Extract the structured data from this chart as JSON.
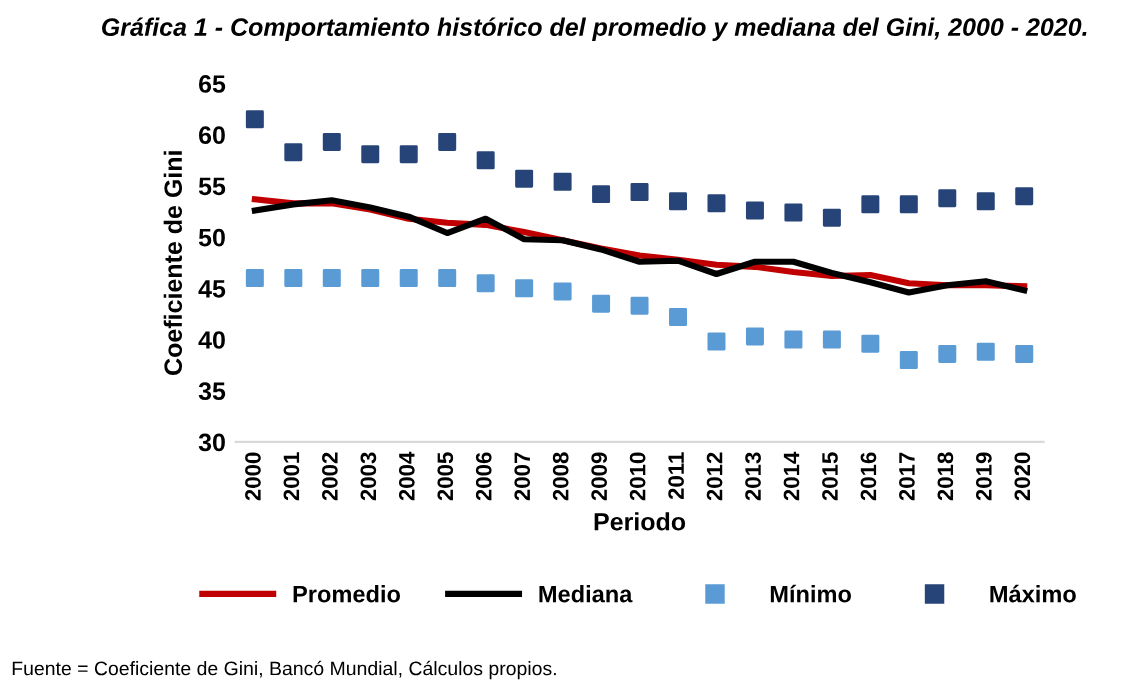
{
  "chart_data": {
    "type": "line",
    "title": "Gráfica 1 - Comportamiento histórico del promedio y mediana del Gini, 2000 - 2020.",
    "xlabel": "Periodo",
    "ylabel": "Coeficiente de Gini",
    "categories": [
      "2000",
      "2001",
      "2002",
      "2003",
      "2004",
      "2005",
      "2006",
      "2007",
      "2008",
      "2009",
      "2010",
      "2011",
      "2012",
      "2013",
      "2014",
      "2015",
      "2016",
      "2017",
      "2018",
      "2019",
      "2020"
    ],
    "series": [
      {
        "name": "Promedio",
        "color": "#c00000",
        "values": [
          53.7,
          53.3,
          53.3,
          52.7,
          51.8,
          51.4,
          51.2,
          50.5,
          49.7,
          48.9,
          48.2,
          47.8,
          47.3,
          47.1,
          46.6,
          46.2,
          46.3,
          45.5,
          45.3,
          45.3,
          45.2
        ]
      },
      {
        "name": "Mediana",
        "color": "#000000",
        "values": [
          52.6,
          53.2,
          53.6,
          52.9,
          52.0,
          50.4,
          51.8,
          49.8,
          49.7,
          48.8,
          47.6,
          47.7,
          46.4,
          47.6,
          47.6,
          46.5,
          45.6,
          44.6,
          45.3,
          45.7,
          44.8
        ]
      },
      {
        "name": "Mínimo",
        "type": "scatter",
        "marker": "square",
        "color": "#5b9bd5",
        "values": [
          46,
          46,
          46,
          46,
          46,
          46,
          45.5,
          45,
          44.7,
          43.5,
          43.3,
          42.2,
          39.8,
          40.3,
          40,
          40,
          39.6,
          38,
          38.6,
          38.8,
          38.6
        ]
      },
      {
        "name": "Máximo",
        "type": "scatter",
        "marker": "square",
        "color": "#264478",
        "values": [
          61.5,
          58.3,
          59.3,
          58.1,
          58.1,
          59.3,
          57.5,
          55.7,
          55.4,
          54.2,
          54.4,
          53.5,
          53.3,
          52.6,
          52.4,
          51.9,
          53.2,
          53.2,
          53.8,
          53.5,
          54.0
        ]
      }
    ],
    "ylim": [
      30,
      65
    ],
    "yticks": [
      30,
      35,
      40,
      45,
      50,
      55,
      60,
      65
    ],
    "grid": false,
    "legend": "bottom",
    "annotations": [
      "Fuente = Coeficiente de Gini, Bancó Mundial, Cálculos propios."
    ]
  }
}
